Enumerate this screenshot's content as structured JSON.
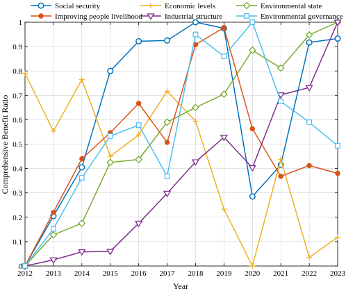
{
  "chart_data": {
    "type": "line",
    "title": "",
    "xlabel": "Year",
    "ylabel": "Comprehensive Benefit Ratio",
    "xlim": [
      2012,
      2023
    ],
    "ylim": [
      0,
      1
    ],
    "grid": true,
    "legend_placement": "top",
    "x": [
      2012,
      2013,
      2014,
      2015,
      2016,
      2017,
      2018,
      2019,
      2020,
      2021,
      2022,
      2023
    ],
    "x_tick_labels": [
      "2012",
      "2013",
      "2014",
      "2015",
      "2016",
      "2017",
      "2018",
      "2019",
      "2020",
      "2021",
      "2022",
      "2023"
    ],
    "y_ticks": [
      0,
      0.1,
      0.2,
      0.3,
      0.4,
      0.5,
      0.6,
      0.7,
      0.8,
      0.9,
      1
    ],
    "y_tick_labels": [
      "0",
      "0.1",
      "0.2",
      "0.3",
      "0.4",
      "0.5",
      "0.6",
      "0.7",
      "0.8",
      "0.9",
      "1"
    ],
    "series": [
      {
        "name": "Social security",
        "color": "#0072bd",
        "marker": "circle",
        "values": [
          0,
          0.205,
          0.405,
          0.8,
          0.922,
          0.925,
          1.0,
          0.975,
          0.285,
          0.415,
          0.917,
          0.933
        ]
      },
      {
        "name": "Economic levels",
        "color": "#edb120",
        "marker": "plus",
        "values": [
          0.79,
          0.553,
          0.765,
          0.45,
          0.538,
          0.717,
          0.594,
          0.233,
          0.0,
          0.438,
          0.035,
          0.118
        ]
      },
      {
        "name": "Environmental state",
        "color": "#77ac30",
        "marker": "diamond",
        "values": [
          0,
          0.128,
          0.175,
          0.425,
          0.437,
          0.59,
          0.65,
          0.705,
          0.885,
          0.812,
          0.948,
          1.0
        ]
      },
      {
        "name": "Improving people livelihood",
        "color": "#d95319",
        "marker": "circle-filled",
        "values": [
          0,
          0.22,
          0.44,
          0.547,
          0.667,
          0.507,
          0.908,
          0.978,
          0.563,
          0.368,
          0.412,
          0.38
        ]
      },
      {
        "name": "Industrial structure",
        "color": "#7e2f8e",
        "marker": "triangle-down",
        "values": [
          0,
          0.025,
          0.058,
          0.06,
          0.175,
          0.298,
          0.427,
          0.528,
          0.403,
          0.702,
          0.732,
          1.0
        ]
      },
      {
        "name": "Environmental governance",
        "color": "#4dbeee",
        "marker": "square",
        "values": [
          0,
          0.152,
          0.362,
          0.533,
          0.578,
          0.368,
          0.95,
          0.86,
          1.0,
          0.675,
          0.59,
          0.493
        ]
      }
    ]
  }
}
